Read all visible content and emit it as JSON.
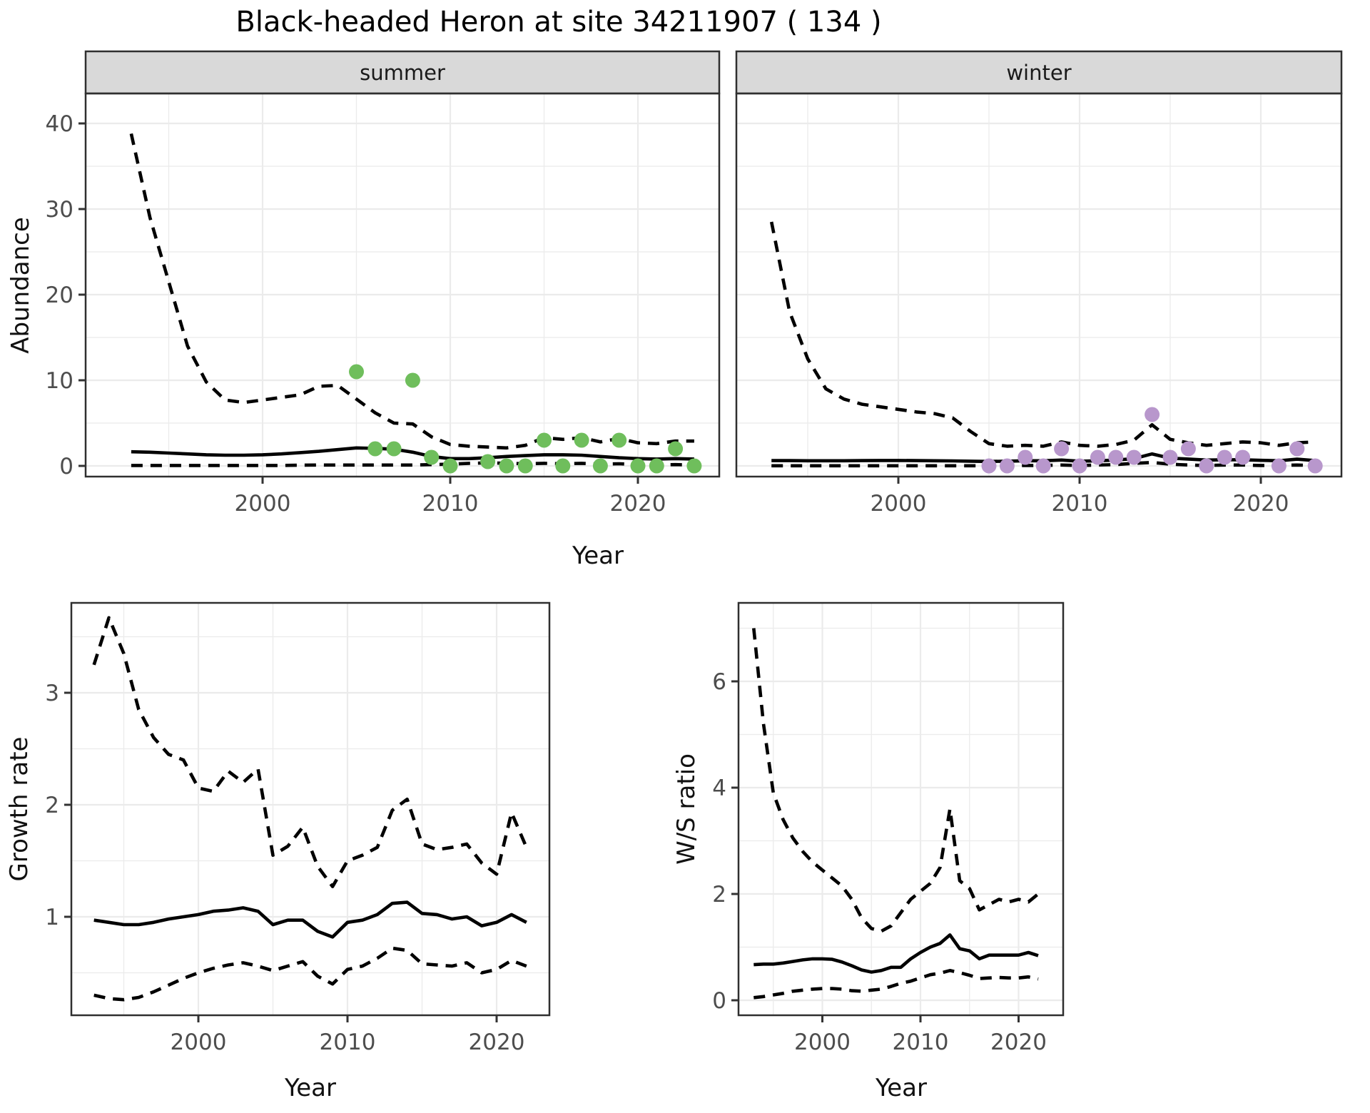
{
  "title": "Black-headed Heron at site 34211907 ( 134 )",
  "colors": {
    "summer_point": "#6FBE5C",
    "winter_point": "#B897CC",
    "line": "#000000",
    "grid": "#EBEBEB",
    "strip_bg": "#D9D9D9",
    "panel_border": "#2F2F2F",
    "tick_text": "#4D4D4D"
  },
  "chart_data": [
    {
      "id": "abundance-summer",
      "type": "line",
      "facet_label": "summer",
      "ylabel": "Abundance",
      "xlabel": "Year",
      "x_ticks": [
        2000,
        2010,
        2020
      ],
      "y_ticks": [
        0,
        10,
        20,
        30,
        40
      ],
      "y_labels_shown": true,
      "grid": true,
      "legend": "none",
      "years": [
        1993,
        1994,
        1995,
        1996,
        1997,
        1998,
        1999,
        2000,
        2001,
        2002,
        2003,
        2004,
        2005,
        2006,
        2007,
        2008,
        2009,
        2010,
        2011,
        2012,
        2013,
        2014,
        2015,
        2016,
        2017,
        2018,
        2019,
        2020,
        2021,
        2022,
        2023
      ],
      "series": [
        {
          "name": "upper_ci",
          "style": "dashed",
          "values": [
            38.8,
            29.0,
            21.5,
            14.0,
            9.8,
            7.7,
            7.4,
            7.7,
            8.0,
            8.3,
            9.3,
            9.4,
            7.8,
            6.2,
            5.0,
            4.9,
            3.4,
            2.5,
            2.3,
            2.2,
            2.1,
            2.4,
            3.3,
            3.1,
            3.3,
            2.8,
            3.2,
            2.7,
            2.6,
            2.9,
            2.9
          ]
        },
        {
          "name": "mean",
          "style": "solid",
          "values": [
            1.65,
            1.6,
            1.5,
            1.4,
            1.3,
            1.25,
            1.25,
            1.3,
            1.4,
            1.55,
            1.7,
            1.9,
            2.1,
            2.05,
            1.95,
            1.6,
            1.1,
            0.85,
            0.85,
            0.95,
            1.1,
            1.2,
            1.3,
            1.3,
            1.25,
            1.1,
            0.95,
            0.85,
            0.8,
            0.85,
            0.8
          ]
        },
        {
          "name": "lower_ci",
          "style": "dashed",
          "values": [
            0.05,
            0.05,
            0.05,
            0.05,
            0.05,
            0.05,
            0.05,
            0.05,
            0.05,
            0.08,
            0.1,
            0.1,
            0.1,
            0.1,
            0.1,
            0.1,
            0.15,
            0.2,
            0.3,
            0.35,
            0.3,
            0.25,
            0.3,
            0.25,
            0.3,
            0.2,
            0.25,
            0.15,
            0.1,
            0.15,
            0.1
          ]
        }
      ],
      "points": {
        "color": "#6FBE5C",
        "data": [
          [
            2005,
            11
          ],
          [
            2006,
            2
          ],
          [
            2007,
            2
          ],
          [
            2008,
            10
          ],
          [
            2009,
            1
          ],
          [
            2010,
            0
          ],
          [
            2012,
            0.5
          ],
          [
            2013,
            0
          ],
          [
            2014,
            0
          ],
          [
            2015,
            3
          ],
          [
            2016,
            0
          ],
          [
            2017,
            3
          ],
          [
            2018,
            0
          ],
          [
            2019,
            3
          ],
          [
            2020,
            0
          ],
          [
            2021,
            0
          ],
          [
            2022,
            2
          ],
          [
            2023,
            0
          ]
        ]
      }
    },
    {
      "id": "abundance-winter",
      "type": "line",
      "facet_label": "winter",
      "ylabel": "Abundance",
      "xlabel": "Year",
      "x_ticks": [
        2000,
        2010,
        2020
      ],
      "y_ticks": [
        0,
        10,
        20,
        30,
        40
      ],
      "y_labels_shown": false,
      "grid": true,
      "legend": "none",
      "years": [
        1993,
        1994,
        1995,
        1996,
        1997,
        1998,
        1999,
        2000,
        2001,
        2002,
        2003,
        2004,
        2005,
        2006,
        2007,
        2008,
        2009,
        2010,
        2011,
        2012,
        2013,
        2014,
        2015,
        2016,
        2017,
        2018,
        2019,
        2020,
        2021,
        2022,
        2023
      ],
      "series": [
        {
          "name": "upper_ci",
          "style": "dashed",
          "values": [
            28.5,
            18.0,
            12.5,
            9.0,
            7.8,
            7.2,
            6.9,
            6.6,
            6.3,
            6.1,
            5.6,
            4.0,
            2.6,
            2.3,
            2.4,
            2.3,
            2.8,
            2.4,
            2.3,
            2.5,
            3.0,
            4.8,
            3.1,
            2.7,
            2.4,
            2.6,
            2.8,
            2.7,
            2.4,
            2.7,
            2.8
          ]
        },
        {
          "name": "mean",
          "style": "solid",
          "values": [
            0.62,
            0.62,
            0.6,
            0.6,
            0.6,
            0.62,
            0.63,
            0.63,
            0.62,
            0.6,
            0.58,
            0.55,
            0.52,
            0.55,
            0.6,
            0.6,
            0.68,
            0.55,
            0.6,
            0.68,
            0.85,
            1.4,
            0.9,
            0.8,
            0.68,
            0.72,
            0.72,
            0.65,
            0.6,
            0.78,
            0.62
          ]
        },
        {
          "name": "lower_ci",
          "style": "dashed",
          "values": [
            0.02,
            0.02,
            0.02,
            0.02,
            0.02,
            0.02,
            0.02,
            0.02,
            0.02,
            0.02,
            0.02,
            0.02,
            0.02,
            0.02,
            0.05,
            0.05,
            0.1,
            0.05,
            0.1,
            0.15,
            0.3,
            0.4,
            0.2,
            0.1,
            0.05,
            0.1,
            0.1,
            0.05,
            0.05,
            0.1,
            0.05
          ]
        }
      ],
      "points": {
        "color": "#B897CC",
        "data": [
          [
            2005,
            0
          ],
          [
            2006,
            0
          ],
          [
            2007,
            1
          ],
          [
            2008,
            0
          ],
          [
            2009,
            2
          ],
          [
            2010,
            0
          ],
          [
            2011,
            1
          ],
          [
            2012,
            1
          ],
          [
            2013,
            1
          ],
          [
            2014,
            6
          ],
          [
            2015,
            1
          ],
          [
            2016,
            2
          ],
          [
            2017,
            0
          ],
          [
            2018,
            1
          ],
          [
            2019,
            1
          ],
          [
            2021,
            0
          ],
          [
            2022,
            2
          ],
          [
            2023,
            0
          ]
        ]
      }
    },
    {
      "id": "growth-rate",
      "type": "line",
      "facet_label": "",
      "ylabel": "Growth rate",
      "xlabel": "Year",
      "x_ticks": [
        2000,
        2010,
        2020
      ],
      "y_ticks": [
        1,
        2,
        3
      ],
      "y_labels_shown": true,
      "grid": true,
      "legend": "none",
      "years": [
        1993,
        1994,
        1995,
        1996,
        1997,
        1998,
        1999,
        2000,
        2001,
        2002,
        2003,
        2004,
        2005,
        2006,
        2007,
        2008,
        2009,
        2010,
        2011,
        2012,
        2013,
        2014,
        2015,
        2016,
        2017,
        2018,
        2019,
        2020,
        2021,
        2022
      ],
      "series": [
        {
          "name": "upper_ci",
          "style": "dashed",
          "values": [
            3.25,
            3.67,
            3.35,
            2.85,
            2.6,
            2.45,
            2.4,
            2.15,
            2.12,
            2.3,
            2.2,
            2.32,
            1.55,
            1.63,
            1.8,
            1.45,
            1.27,
            1.5,
            1.55,
            1.62,
            1.95,
            2.05,
            1.65,
            1.6,
            1.62,
            1.65,
            1.48,
            1.38,
            1.93,
            1.62
          ]
        },
        {
          "name": "mean",
          "style": "solid",
          "values": [
            0.97,
            0.95,
            0.93,
            0.93,
            0.95,
            0.98,
            1.0,
            1.02,
            1.05,
            1.06,
            1.08,
            1.05,
            0.93,
            0.97,
            0.97,
            0.87,
            0.82,
            0.95,
            0.97,
            1.02,
            1.12,
            1.13,
            1.03,
            1.02,
            0.98,
            1.0,
            0.92,
            0.95,
            1.02,
            0.95
          ]
        },
        {
          "name": "lower_ci",
          "style": "dashed",
          "values": [
            0.3,
            0.27,
            0.26,
            0.28,
            0.33,
            0.39,
            0.45,
            0.5,
            0.54,
            0.57,
            0.59,
            0.56,
            0.52,
            0.56,
            0.6,
            0.47,
            0.4,
            0.53,
            0.56,
            0.63,
            0.72,
            0.7,
            0.58,
            0.57,
            0.56,
            0.59,
            0.5,
            0.53,
            0.61,
            0.56
          ]
        }
      ],
      "points": {
        "color": "",
        "data": []
      }
    },
    {
      "id": "ws-ratio",
      "type": "line",
      "facet_label": "",
      "ylabel": "W/S ratio",
      "xlabel": "Year",
      "x_ticks": [
        2000,
        2010,
        2020
      ],
      "y_ticks": [
        0,
        2,
        4,
        6
      ],
      "y_labels_shown": true,
      "grid": true,
      "legend": "none",
      "years": [
        1993,
        1994,
        1995,
        1996,
        1997,
        1998,
        1999,
        2000,
        2001,
        2002,
        2003,
        2004,
        2005,
        2006,
        2007,
        2008,
        2009,
        2010,
        2011,
        2012,
        2013,
        2014,
        2015,
        2016,
        2017,
        2018,
        2019,
        2020,
        2021,
        2022
      ],
      "series": [
        {
          "name": "upper_ci",
          "style": "dashed",
          "values": [
            7.0,
            5.2,
            3.9,
            3.4,
            3.05,
            2.8,
            2.6,
            2.45,
            2.3,
            2.15,
            1.9,
            1.55,
            1.35,
            1.3,
            1.4,
            1.65,
            1.9,
            2.05,
            2.2,
            2.5,
            3.6,
            2.25,
            2.1,
            1.7,
            1.8,
            1.9,
            1.85,
            1.9,
            1.85,
            2.0
          ]
        },
        {
          "name": "mean",
          "style": "solid",
          "values": [
            0.67,
            0.68,
            0.68,
            0.7,
            0.73,
            0.76,
            0.78,
            0.78,
            0.77,
            0.72,
            0.65,
            0.57,
            0.53,
            0.56,
            0.62,
            0.62,
            0.78,
            0.9,
            1.0,
            1.07,
            1.23,
            0.97,
            0.93,
            0.78,
            0.85,
            0.85,
            0.85,
            0.85,
            0.9,
            0.84
          ]
        },
        {
          "name": "lower_ci",
          "style": "dashed",
          "values": [
            0.05,
            0.07,
            0.1,
            0.13,
            0.17,
            0.19,
            0.21,
            0.22,
            0.22,
            0.21,
            0.18,
            0.17,
            0.19,
            0.21,
            0.26,
            0.32,
            0.36,
            0.42,
            0.48,
            0.51,
            0.56,
            0.52,
            0.47,
            0.41,
            0.42,
            0.43,
            0.42,
            0.42,
            0.44,
            0.4
          ]
        }
      ],
      "points": {
        "color": "",
        "data": []
      }
    }
  ]
}
